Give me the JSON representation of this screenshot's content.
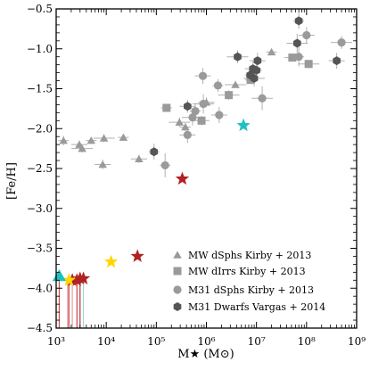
{
  "chart_data": {
    "type": "scatter",
    "title": "",
    "xlabel": "M★ (M⊙)",
    "ylabel": "[Fe/H]",
    "xscale": "log",
    "xlim": [
      1000,
      1000000000
    ],
    "ylim": [
      -4.5,
      -0.5
    ],
    "x_ticks": [
      "10³",
      "10⁴",
      "10⁵",
      "10⁶",
      "10⁷",
      "10⁸",
      "10⁹"
    ],
    "y_ticks": [
      "−4.5",
      "−4.0",
      "−3.5",
      "−3.0",
      "−2.5",
      "−2.0",
      "−1.5",
      "−1.0",
      "−0.5"
    ],
    "grid": false,
    "legend_position": "bottom-right",
    "colors": {
      "gray": "#9a9a9a",
      "dark": "#555555",
      "red": "#b22222",
      "gold": "#ffd700",
      "cyan": "#20c0c0"
    },
    "series": [
      {
        "name": "MW dSphs Kirby + 2013",
        "marker": "triangle",
        "color": "#9a9a9a",
        "points": [
          {
            "x": 1400,
            "y": -2.15,
            "yerr": 0.06
          },
          {
            "x": 2900,
            "y": -2.2,
            "yerr": 0.05
          },
          {
            "x": 3300,
            "y": -2.25,
            "yerr": 0.05
          },
          {
            "x": 5000,
            "y": -2.15,
            "yerr": 0.04
          },
          {
            "x": 8500,
            "y": -2.45,
            "yerr": 0.06
          },
          {
            "x": 9000,
            "y": -2.12,
            "yerr": 0.05
          },
          {
            "x": 22000,
            "y": -2.11,
            "yerr": 0.04
          },
          {
            "x": 45000,
            "y": -2.38,
            "yerr": 0.05
          },
          {
            "x": 290000,
            "y": -1.92,
            "yerr": 0.06
          },
          {
            "x": 380000,
            "y": -1.98,
            "yerr": 0.05
          },
          {
            "x": 1000000,
            "y": -1.67,
            "yerr": 0.06
          },
          {
            "x": 3800000,
            "y": -1.45,
            "yerr": 0.04
          },
          {
            "x": 20000000,
            "y": -1.04,
            "yerr": 0.04
          }
        ]
      },
      {
        "name": "MW dIrrs Kirby + 2013",
        "marker": "square",
        "color": "#9a9a9a",
        "points": [
          {
            "x": 160000,
            "y": -1.74,
            "yerr": 0.05
          },
          {
            "x": 800000,
            "y": -1.9,
            "yerr": 0.06
          },
          {
            "x": 2800000,
            "y": -1.58,
            "yerr": 0.06
          },
          {
            "x": 7600000,
            "y": -1.39,
            "yerr": 0.05
          },
          {
            "x": 52000000,
            "y": -1.11,
            "yerr": 0.05
          },
          {
            "x": 110000000,
            "y": -1.19,
            "yerr": 0.05
          }
        ]
      },
      {
        "name": "M31 dSphs Kirby + 2013",
        "marker": "circle",
        "color": "#9a9a9a",
        "points": [
          {
            "x": 150000,
            "y": -2.46,
            "yerr": 0.15
          },
          {
            "x": 420000,
            "y": -2.08,
            "yerr": 0.1
          },
          {
            "x": 530000,
            "y": -1.86,
            "yerr": 0.1
          },
          {
            "x": 600000,
            "y": -1.78,
            "yerr": 0.1
          },
          {
            "x": 850000,
            "y": -1.34,
            "yerr": 0.1
          },
          {
            "x": 870000,
            "y": -1.69,
            "yerr": 0.12
          },
          {
            "x": 1700000,
            "y": -1.46,
            "yerr": 0.08
          },
          {
            "x": 1800000,
            "y": -1.83,
            "yerr": 0.1
          },
          {
            "x": 13000000,
            "y": -1.62,
            "yerr": 0.15
          },
          {
            "x": 70000000,
            "y": -1.1,
            "yerr": 0.12
          },
          {
            "x": 100000000,
            "y": -0.83,
            "yerr": 0.1
          },
          {
            "x": 500000000,
            "y": -0.92,
            "yerr": 0.08
          }
        ]
      },
      {
        "name": "M31 Dwarfs Vargas + 2014",
        "marker": "hexagon",
        "color": "#555555",
        "points": [
          {
            "x": 90000,
            "y": -2.29,
            "yerr": 0.1
          },
          {
            "x": 420000,
            "y": -1.72,
            "yerr": 0.08
          },
          {
            "x": 4200000,
            "y": -1.1,
            "yerr": 0.08
          },
          {
            "x": 7500000,
            "y": -1.33,
            "yerr": 0.1
          },
          {
            "x": 8500000,
            "y": -1.25,
            "yerr": 0.1
          },
          {
            "x": 9000000,
            "y": -1.37,
            "yerr": 0.1
          },
          {
            "x": 10000000,
            "y": -1.27,
            "yerr": 0.1
          },
          {
            "x": 10500000,
            "y": -1.15,
            "yerr": 0.1
          },
          {
            "x": 65000000,
            "y": -0.93,
            "yerr": 0.12
          },
          {
            "x": 70000000,
            "y": -0.65,
            "yerr": 0.1
          },
          {
            "x": 400000000,
            "y": -1.15,
            "yerr": 0.1
          }
        ]
      },
      {
        "marker": "star",
        "color": "#b22222",
        "points": [
          {
            "x": 42000,
            "y": -3.6
          },
          {
            "x": 330000,
            "y": -2.63
          },
          {
            "x": 2100,
            "y": -3.9
          },
          {
            "x": 2600,
            "y": -3.9
          },
          {
            "x": 3000,
            "y": -3.88
          },
          {
            "x": 3500,
            "y": -3.88
          }
        ]
      },
      {
        "marker": "star",
        "color": "#ffd700",
        "points": [
          {
            "x": 12500,
            "y": -3.67
          },
          {
            "x": 1800,
            "y": -3.9
          }
        ]
      },
      {
        "marker": "star",
        "color": "#20c0c0",
        "points": [
          {
            "x": 5500000,
            "y": -1.96
          }
        ]
      },
      {
        "marker": "triangle",
        "color": "#20c0c0",
        "points": [
          {
            "x": 1150,
            "y": -3.85
          }
        ]
      }
    ]
  }
}
